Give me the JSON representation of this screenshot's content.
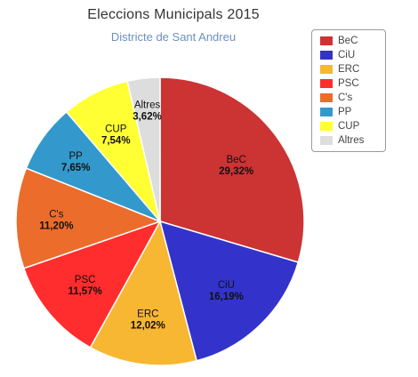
{
  "chart_data": {
    "type": "pie",
    "title": "Eleccions Municipals 2015",
    "subtitle": "Districte de Sant Andreu",
    "slices": [
      {
        "name": "BeC",
        "value": 29.32,
        "label": "29,32%",
        "color": "#cc3333"
      },
      {
        "name": "CiU",
        "value": 16.19,
        "label": "16,19%",
        "color": "#3333cc"
      },
      {
        "name": "ERC",
        "value": 12.02,
        "label": "12,02%",
        "color": "#f7b733"
      },
      {
        "name": "PSC",
        "value": 11.57,
        "label": "11,57%",
        "color": "#ff2d2d"
      },
      {
        "name": "C's",
        "value": 11.2,
        "label": "11,20%",
        "color": "#ec6c2c"
      },
      {
        "name": "PP",
        "value": 7.65,
        "label": "7,65%",
        "color": "#3399cc"
      },
      {
        "name": "CUP",
        "value": 7.54,
        "label": "7,54%",
        "color": "#ffff33"
      },
      {
        "name": "Altres",
        "value": 3.62,
        "label": "3,62%",
        "color": "#dddddd"
      }
    ],
    "legend": {
      "position": "top-right",
      "items": [
        "BeC",
        "CiU",
        "ERC",
        "PSC",
        "C's",
        "PP",
        "CUP",
        "Altres"
      ]
    }
  }
}
